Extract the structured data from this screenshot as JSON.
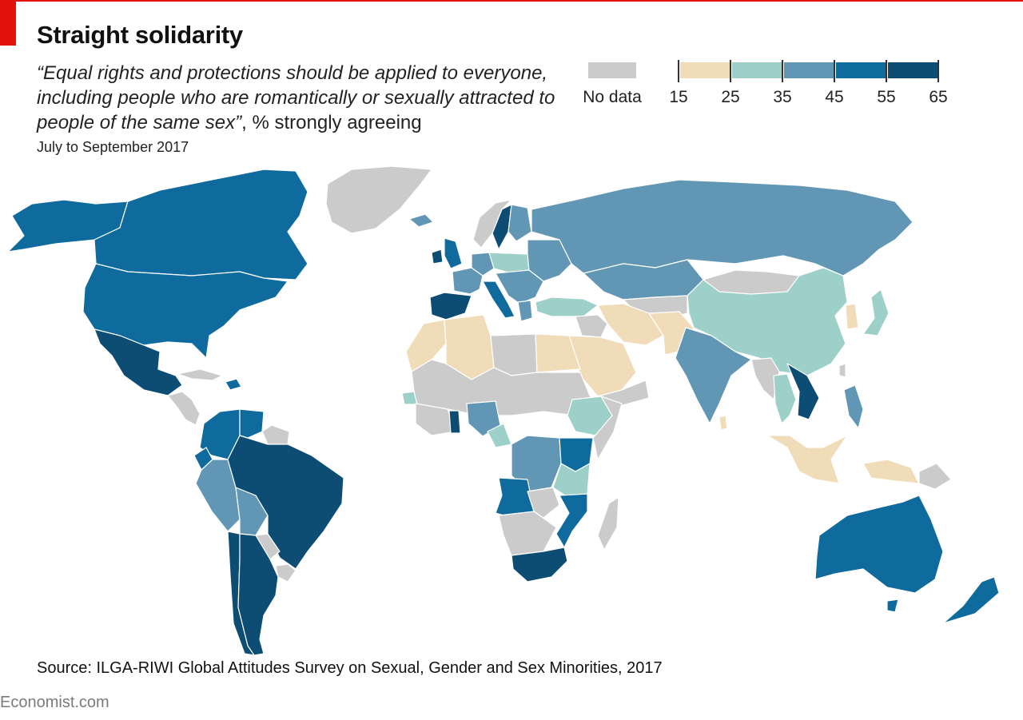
{
  "title": "Straight solidarity",
  "subtitle": {
    "quote": "“Equal rights and protections should be applied to everyone, including people who are romantically or sexually attracted to people of the same sex”",
    "rest": ", % strongly agreeing"
  },
  "date": "July to September 2017",
  "legend": {
    "nodata_label": "No data",
    "nodata_color": "#cbcbcc",
    "breaks": [
      "15",
      "25",
      "35",
      "45",
      "55",
      "65"
    ],
    "colors": [
      "#f0dcb8",
      "#9dd0c9",
      "#6197b5",
      "#0f6b9e",
      "#0e4d73"
    ]
  },
  "map": {
    "categories": {
      "nodata": "#cbcbcc",
      "c15_25": "#f0dcb8",
      "c25_35": "#9dd0c9",
      "c35_45": "#6197b5",
      "c45_55": "#0f6b9e",
      "c55_65": "#0e4d73"
    }
  },
  "source": "Source: ILGA-RIWI Global Attitudes Survey on Sexual, Gender and Sex Minorities, 2017",
  "brand": "Economist.com"
}
